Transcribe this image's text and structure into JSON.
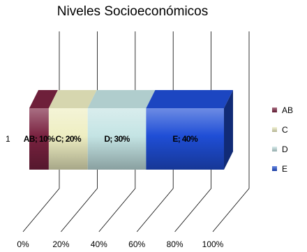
{
  "chart_data": {
    "type": "bar",
    "orientation": "horizontal",
    "stacking": "percent",
    "style": "3d",
    "title": "Niveles Socioeconómicos",
    "categories": [
      "1"
    ],
    "series": [
      {
        "name": "AB",
        "values": [
          10
        ],
        "label": "AB; 10%",
        "color": "#7a2240"
      },
      {
        "name": "C",
        "values": [
          20
        ],
        "label": "C; 20%",
        "color": "#eeeec2"
      },
      {
        "name": "D",
        "values": [
          30
        ],
        "label": "D; 30%",
        "color": "#c4e4e4"
      },
      {
        "name": "E",
        "values": [
          40
        ],
        "label": "E; 40%",
        "color": "#1f4ed6"
      }
    ],
    "xaxis": {
      "ticks": [
        "0%",
        "20%",
        "40%",
        "60%",
        "80%",
        "100%"
      ],
      "range": [
        0,
        100
      ]
    },
    "grid": true,
    "legend": "right"
  }
}
